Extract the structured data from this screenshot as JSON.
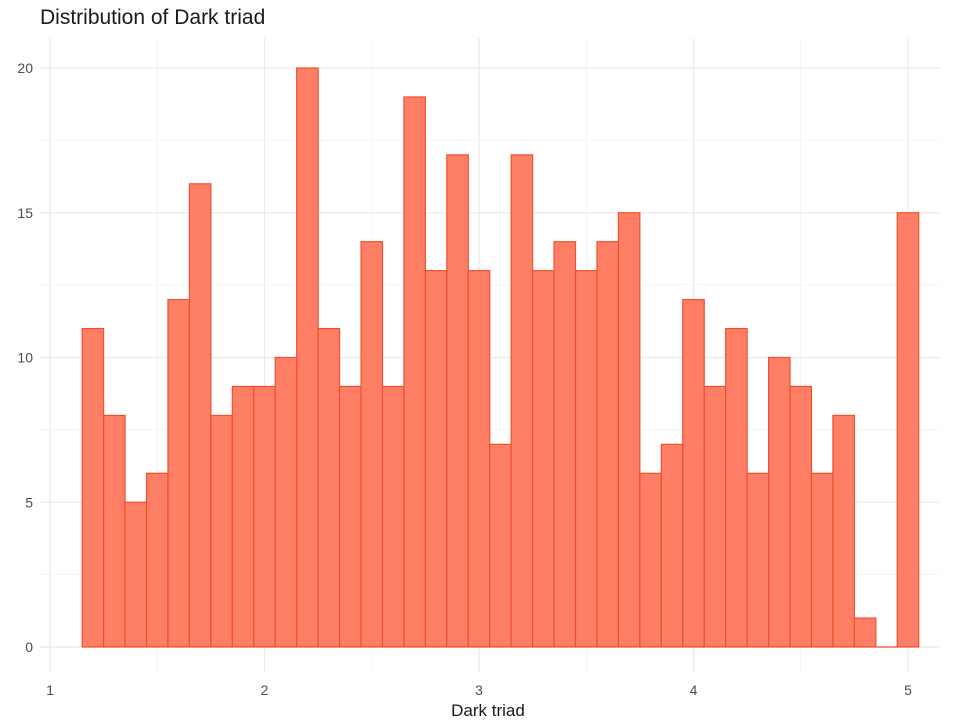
{
  "chart_data": {
    "type": "bar",
    "title": "Distribution of Dark triad",
    "xlabel": "Dark triad",
    "ylabel": "",
    "xlim": [
      1,
      5.1
    ],
    "ylim": [
      0,
      20
    ],
    "x_ticks": [
      1,
      2,
      3,
      4,
      5
    ],
    "y_ticks": [
      0,
      5,
      10,
      15,
      20
    ],
    "grid": true,
    "bin_width": 0.1,
    "bin_centers": [
      1.2,
      1.3,
      1.4,
      1.5,
      1.6,
      1.7,
      1.8,
      1.9,
      2.0,
      2.1,
      2.2,
      2.3,
      2.4,
      2.5,
      2.6,
      2.7,
      2.8,
      2.9,
      3.0,
      3.1,
      3.2,
      3.3,
      3.4,
      3.5,
      3.6,
      3.7,
      3.8,
      3.9,
      4.0,
      4.1,
      4.2,
      4.3,
      4.4,
      4.5,
      4.6,
      4.7,
      4.8,
      4.9,
      5.0
    ],
    "values": [
      11,
      8,
      5,
      6,
      12,
      16,
      8,
      9,
      9,
      10,
      20,
      11,
      9,
      14,
      9,
      19,
      13,
      17,
      13,
      7,
      17,
      13,
      14,
      13,
      14,
      15,
      6,
      7,
      12,
      9,
      11,
      6,
      10,
      9,
      6,
      8,
      1,
      0,
      15
    ],
    "colors": {
      "fill": "#ff7f66",
      "stroke": "#f0502e",
      "grid": "#ebebeb"
    }
  }
}
